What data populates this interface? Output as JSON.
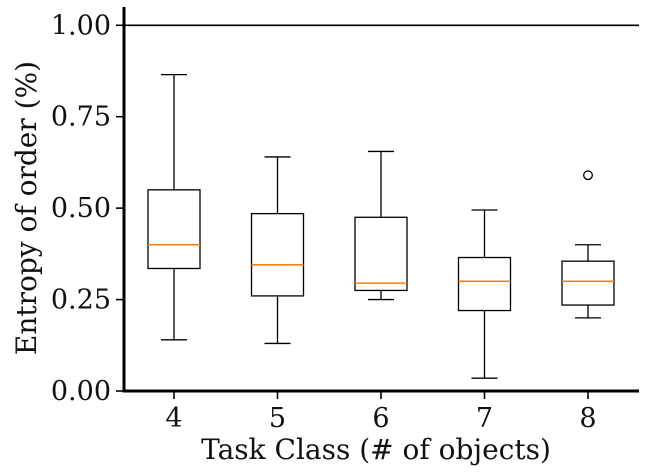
{
  "chart_data": {
    "type": "box",
    "title": "",
    "xlabel": "Task Class (# of objects)",
    "ylabel": "Entropy of order (%)",
    "ylim": [
      0,
      1.05
    ],
    "yticks": [
      "0.00",
      "0.25",
      "0.50",
      "0.75",
      "1.00"
    ],
    "ytick_values": [
      0,
      0.25,
      0.5,
      0.75,
      1.0
    ],
    "categories": [
      "4",
      "5",
      "6",
      "7",
      "8"
    ],
    "grid": false,
    "legend": "none",
    "reference_line": {
      "y": 1.0
    },
    "boxes": [
      {
        "category": "4",
        "whisker_low": 0.14,
        "q1": 0.335,
        "median": 0.4,
        "q3": 0.55,
        "whisker_high": 0.865,
        "outliers": []
      },
      {
        "category": "5",
        "whisker_low": 0.13,
        "q1": 0.26,
        "median": 0.345,
        "q3": 0.485,
        "whisker_high": 0.64,
        "outliers": []
      },
      {
        "category": "6",
        "whisker_low": 0.25,
        "q1": 0.275,
        "median": 0.295,
        "q3": 0.475,
        "whisker_high": 0.655,
        "outliers": []
      },
      {
        "category": "7",
        "whisker_low": 0.035,
        "q1": 0.22,
        "median": 0.3,
        "q3": 0.365,
        "whisker_high": 0.495,
        "outliers": []
      },
      {
        "category": "8",
        "whisker_low": 0.2,
        "q1": 0.235,
        "median": 0.3,
        "q3": 0.355,
        "whisker_high": 0.4,
        "outliers": [
          0.59
        ]
      }
    ],
    "colors": {
      "box": "#000000",
      "median": "#ff7f0e",
      "axis": "#000000"
    }
  }
}
